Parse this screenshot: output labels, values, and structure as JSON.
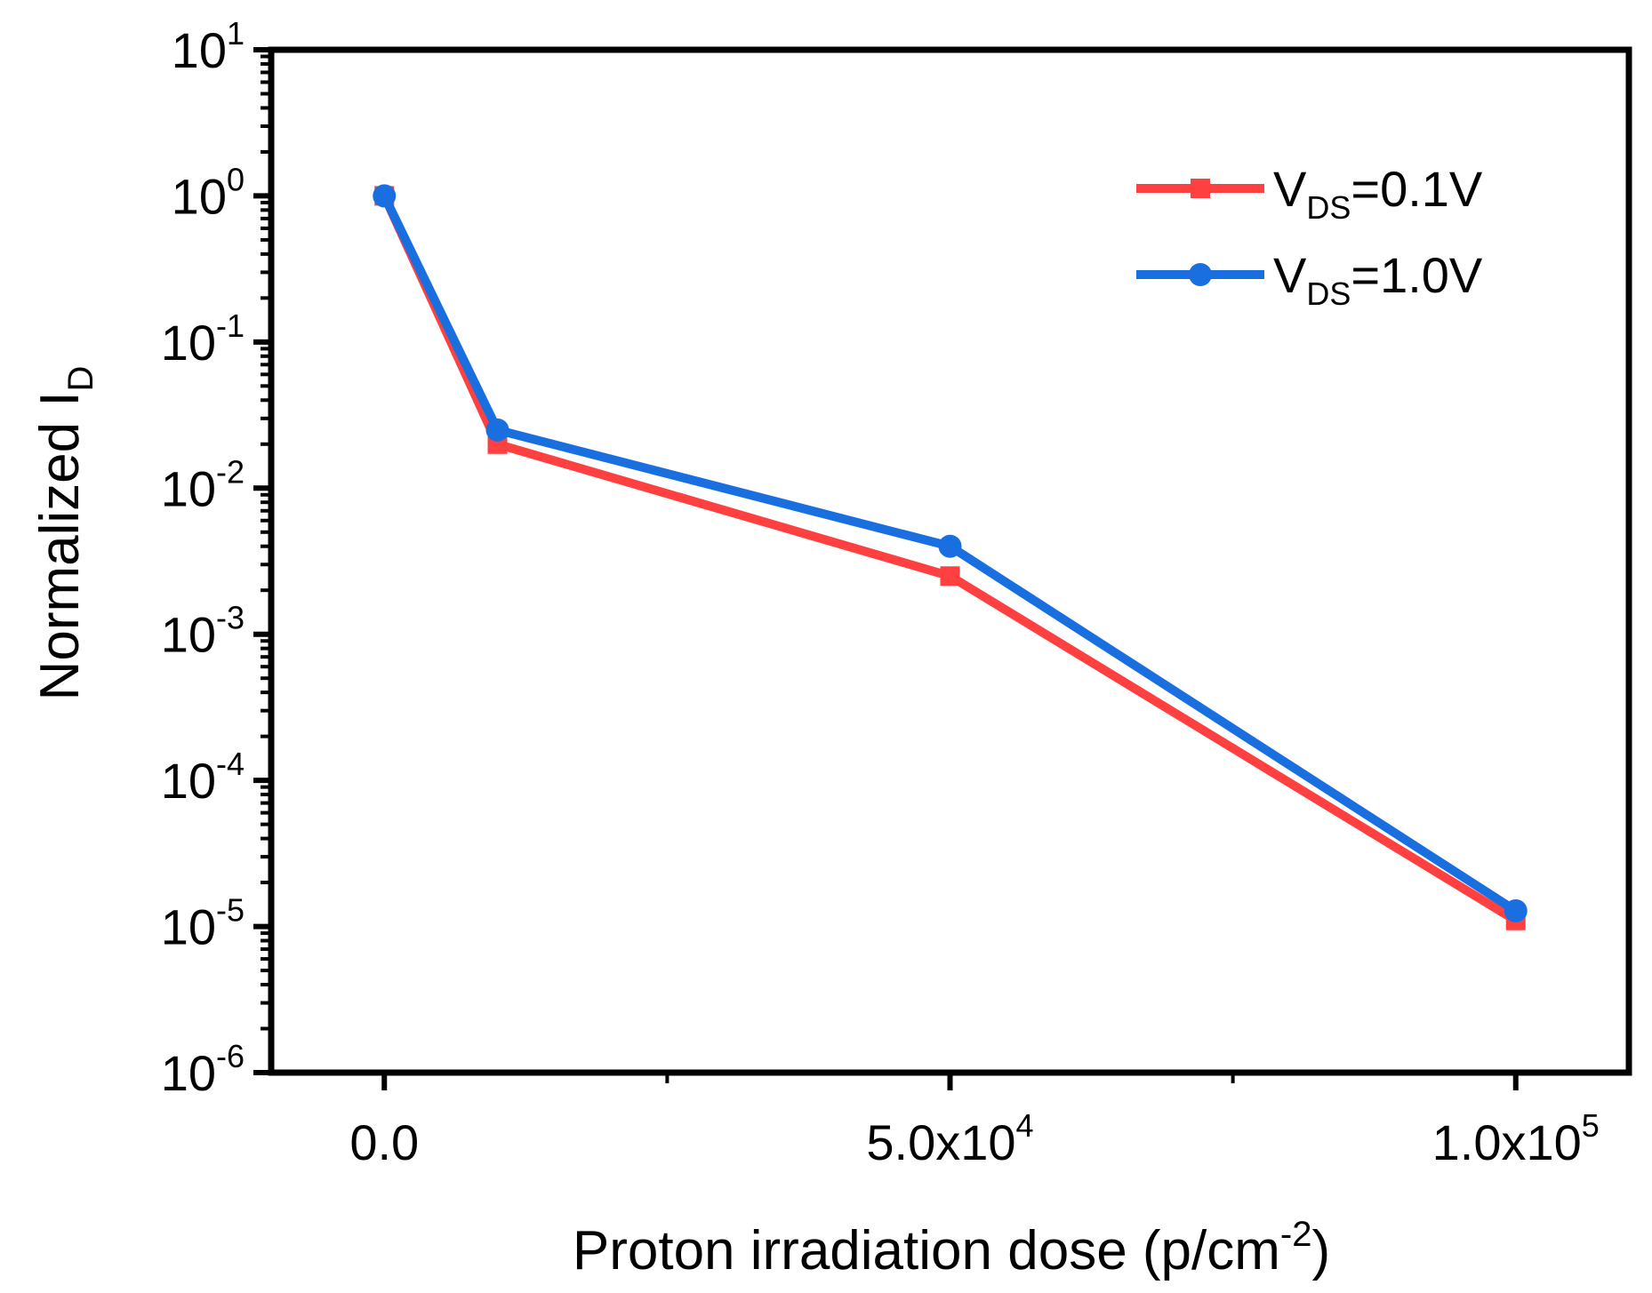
{
  "chart_data": {
    "type": "line",
    "xlabel": {
      "text": "Proton irradiation dose (p/cm",
      "sup": "-2",
      "close": ")"
    },
    "ylabel": {
      "text": "Normalized I",
      "sub": "D"
    },
    "x_scale": "linear",
    "y_scale": "log",
    "xlim": [
      -10000,
      110000
    ],
    "ylim": [
      1e-06,
      10
    ],
    "x_ticks": [
      {
        "value": 0,
        "base": "0.0",
        "sup": ""
      },
      {
        "value": 50000,
        "base": "5.0x10",
        "sup": "4"
      },
      {
        "value": 100000,
        "base": "1.0x10",
        "sup": "5"
      }
    ],
    "x_minor_ticks": [
      25000,
      75000
    ],
    "y_ticks": [
      {
        "exp": 1,
        "base": "10",
        "sup": "1"
      },
      {
        "exp": 0,
        "base": "10",
        "sup": "0"
      },
      {
        "exp": -1,
        "base": "10",
        "sup": "-1"
      },
      {
        "exp": -2,
        "base": "10",
        "sup": "-2"
      },
      {
        "exp": -3,
        "base": "10",
        "sup": "-3"
      },
      {
        "exp": -4,
        "base": "10",
        "sup": "-4"
      },
      {
        "exp": -5,
        "base": "10",
        "sup": "-5"
      },
      {
        "exp": -6,
        "base": "10",
        "sup": "-6"
      }
    ],
    "grid": false,
    "legend_position": "top-right",
    "series": [
      {
        "name": {
          "base": "V",
          "sub": "DS",
          "rest": "=0.1V"
        },
        "color": "#ff4040",
        "marker": "square",
        "x": [
          0,
          10000,
          50000,
          100000
        ],
        "y": [
          1.0,
          0.02,
          0.0025,
          1.1e-05
        ]
      },
      {
        "name": {
          "base": "V",
          "sub": "DS",
          "rest": "=1.0V"
        },
        "color": "#1a6fe0",
        "marker": "circle",
        "x": [
          0,
          10000,
          50000,
          100000
        ],
        "y": [
          1.0,
          0.025,
          0.004,
          1.28e-05
        ]
      }
    ]
  }
}
